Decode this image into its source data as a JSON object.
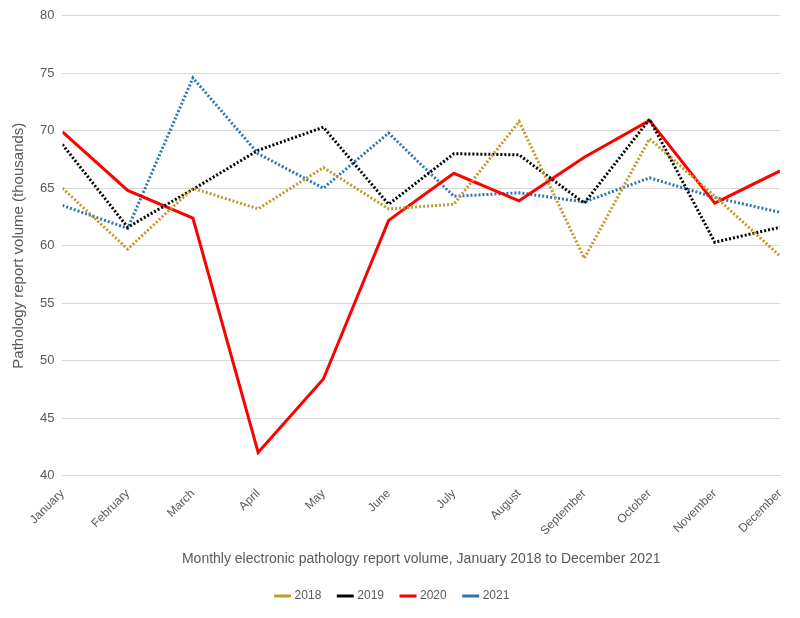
{
  "chart_data": {
    "type": "line",
    "y_label": "Pathology report volume (thousands)",
    "x_label": "Monthly electronic pathology report volume, January 2018 to December 2021",
    "categories": [
      "January",
      "February",
      "March",
      "April",
      "May",
      "June",
      "July",
      "August",
      "September",
      "October",
      "November",
      "December"
    ],
    "series": [
      {
        "name": "2018",
        "color": "#c09a2c",
        "line_style": "dotted",
        "values": [
          65,
          59.7,
          65,
          63.2,
          66.8,
          63.2,
          63.6,
          70.8,
          58.9,
          69.3,
          64.3,
          59.1
        ]
      },
      {
        "name": "2019",
        "color": "#000000",
        "line_style": "dotted",
        "values": [
          68.8,
          61.6,
          64.9,
          68.3,
          70.3,
          63.6,
          68,
          67.9,
          63.7,
          71,
          60.3,
          61.6
        ]
      },
      {
        "name": "2020",
        "color": "#ff0000",
        "line_style": "solid",
        "values": [
          69.9,
          64.8,
          62.4,
          42,
          48.4,
          62.2,
          66.3,
          63.9,
          67.7,
          70.9,
          63.7,
          66.5
        ]
      },
      {
        "name": "2021",
        "color": "#2e75b6",
        "line_style": "dotted",
        "values": [
          63.5,
          61.5,
          74.6,
          68,
          65,
          69.8,
          64.3,
          64.6,
          63.8,
          65.9,
          64.2,
          62.9
        ]
      }
    ],
    "ylim": [
      40,
      80
    ],
    "yticks": [
      40,
      45,
      50,
      55,
      60,
      65,
      70,
      75,
      80
    ],
    "grid": true,
    "legend": "bottom"
  }
}
